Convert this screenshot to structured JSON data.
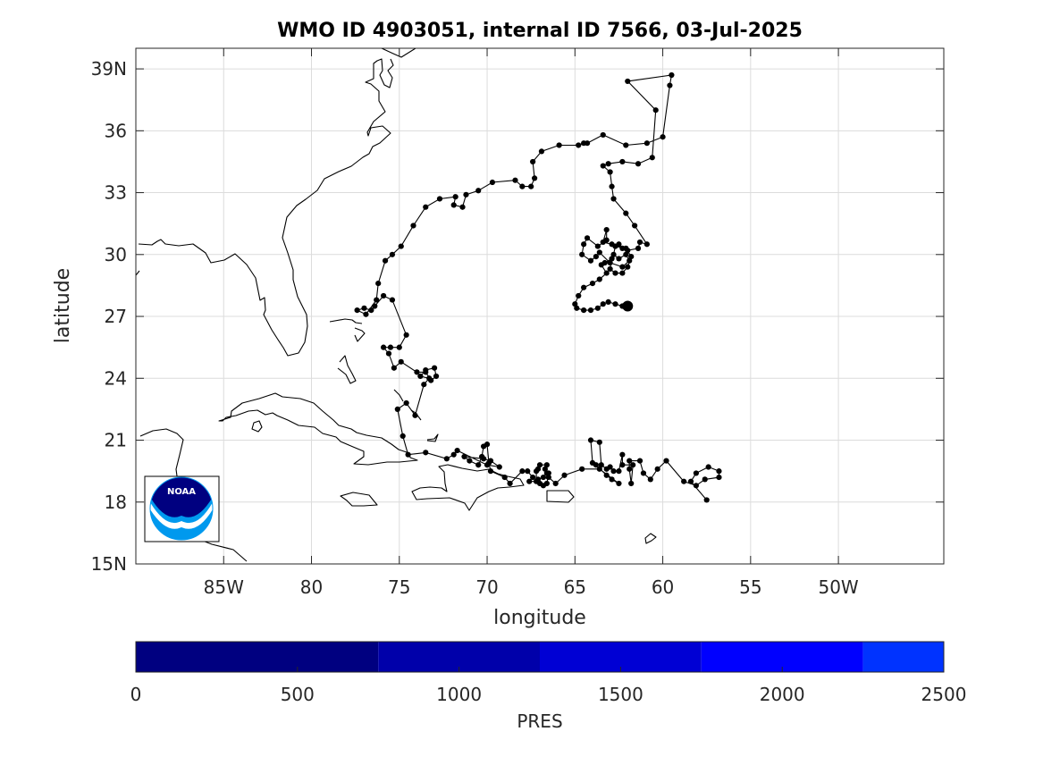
{
  "chart_data": {
    "type": "map-track",
    "title": "WMO ID 4903051, internal ID 7566, 03-Jul-2025",
    "xlabel": "longitude",
    "ylabel": "latitude",
    "xlim": [
      -90,
      -44
    ],
    "ylim": [
      15,
      40
    ],
    "x_ticks": [
      {
        "value": -85,
        "label": "85W"
      },
      {
        "value": -80,
        "label": "80"
      },
      {
        "value": -75,
        "label": "75"
      },
      {
        "value": -70,
        "label": "70"
      },
      {
        "value": -65,
        "label": "65"
      },
      {
        "value": -60,
        "label": "60"
      },
      {
        "value": -55,
        "label": "55"
      },
      {
        "value": -50,
        "label": "50W"
      }
    ],
    "y_ticks": [
      {
        "value": 15,
        "label": "15N"
      },
      {
        "value": 18,
        "label": "18"
      },
      {
        "value": 21,
        "label": "21"
      },
      {
        "value": 24,
        "label": "24"
      },
      {
        "value": 27,
        "label": "27"
      },
      {
        "value": 30,
        "label": "30"
      },
      {
        "value": 33,
        "label": "33"
      },
      {
        "value": 36,
        "label": "36"
      },
      {
        "value": 39,
        "label": "39N"
      }
    ],
    "grid": true,
    "track_color": "#000000",
    "last_position": [
      -62.0,
      27.5
    ],
    "track": [
      [
        -57.5,
        18.1
      ],
      [
        -58.4,
        19.0
      ],
      [
        -58.1,
        19.4
      ],
      [
        -57.4,
        19.7
      ],
      [
        -56.8,
        19.5
      ],
      [
        -56.8,
        19.2
      ],
      [
        -57.6,
        19.1
      ],
      [
        -58.1,
        18.8
      ],
      [
        -58.8,
        19.0
      ],
      [
        -59.8,
        20.0
      ],
      [
        -60.3,
        19.6
      ],
      [
        -60.7,
        19.1
      ],
      [
        -61.1,
        19.4
      ],
      [
        -61.3,
        20.0
      ],
      [
        -61.9,
        20.0
      ],
      [
        -61.9,
        19.6
      ],
      [
        -61.8,
        18.9
      ],
      [
        -61.7,
        19.8
      ],
      [
        -62.3,
        19.8
      ],
      [
        -62.3,
        20.3
      ],
      [
        -62.5,
        19.5
      ],
      [
        -62.8,
        19.5
      ],
      [
        -63.0,
        19.7
      ],
      [
        -63.2,
        19.6
      ],
      [
        -63.5,
        19.8
      ],
      [
        -63.6,
        20.9
      ],
      [
        -64.1,
        21.0
      ],
      [
        -64.0,
        19.9
      ],
      [
        -63.8,
        19.8
      ],
      [
        -63.2,
        19.3
      ],
      [
        -62.9,
        19.1
      ],
      [
        -62.5,
        18.9
      ],
      [
        -63.6,
        19.6
      ],
      [
        -64.6,
        19.6
      ],
      [
        -65.6,
        19.3
      ],
      [
        -66.1,
        18.9
      ],
      [
        -66.5,
        19.2
      ],
      [
        -66.5,
        19.4
      ],
      [
        -66.6,
        18.9
      ],
      [
        -66.8,
        18.8
      ],
      [
        -67.0,
        18.9
      ],
      [
        -67.1,
        19.1
      ],
      [
        -66.8,
        19.2
      ],
      [
        -66.6,
        19.4
      ],
      [
        -66.7,
        19.6
      ],
      [
        -66.6,
        19.8
      ],
      [
        -67.0,
        19.8
      ],
      [
        -67.1,
        19.6
      ],
      [
        -67.2,
        19.5
      ],
      [
        -67.2,
        19.0
      ],
      [
        -67.6,
        19.0
      ],
      [
        -67.4,
        19.2
      ],
      [
        -67.7,
        19.5
      ],
      [
        -68.0,
        19.5
      ],
      [
        -68.7,
        18.9
      ],
      [
        -69.0,
        19.2
      ],
      [
        -69.8,
        19.5
      ],
      [
        -69.9,
        19.9
      ],
      [
        -70.0,
        20.8
      ],
      [
        -70.2,
        20.7
      ],
      [
        -70.3,
        20.2
      ],
      [
        -70.5,
        19.8
      ],
      [
        -71.0,
        20.0
      ],
      [
        -71.3,
        20.2
      ],
      [
        -70.2,
        20.1
      ],
      [
        -69.8,
        20.0
      ],
      [
        -69.3,
        19.7
      ],
      [
        -70.0,
        19.8
      ],
      [
        -71.7,
        20.5
      ],
      [
        -71.9,
        20.3
      ],
      [
        -72.3,
        20.1
      ],
      [
        -73.5,
        20.4
      ],
      [
        -74.5,
        20.3
      ],
      [
        -74.8,
        21.2
      ],
      [
        -75.1,
        22.5
      ],
      [
        -74.6,
        22.8
      ],
      [
        -74.1,
        22.2
      ],
      [
        -73.6,
        23.7
      ],
      [
        -73.3,
        24.0
      ],
      [
        -73.8,
        24.1
      ],
      [
        -73.5,
        24.4
      ],
      [
        -73.0,
        24.5
      ],
      [
        -72.9,
        24.1
      ],
      [
        -73.2,
        23.9
      ],
      [
        -73.5,
        24.3
      ],
      [
        -74.0,
        24.3
      ],
      [
        -74.9,
        24.8
      ],
      [
        -75.3,
        24.5
      ],
      [
        -75.6,
        25.2
      ],
      [
        -75.9,
        25.5
      ],
      [
        -75.5,
        25.5
      ],
      [
        -75.0,
        25.5
      ],
      [
        -74.6,
        26.1
      ],
      [
        -75.4,
        27.8
      ],
      [
        -75.9,
        28.0
      ],
      [
        -76.4,
        27.5
      ],
      [
        -76.6,
        27.3
      ],
      [
        -77.0,
        27.4
      ],
      [
        -77.4,
        27.3
      ],
      [
        -76.9,
        27.1
      ],
      [
        -76.3,
        27.8
      ],
      [
        -76.2,
        28.6
      ],
      [
        -75.8,
        29.7
      ],
      [
        -75.4,
        30.0
      ],
      [
        -74.9,
        30.4
      ],
      [
        -74.2,
        31.4
      ],
      [
        -73.5,
        32.3
      ],
      [
        -72.7,
        32.7
      ],
      [
        -71.8,
        32.8
      ],
      [
        -71.9,
        32.4
      ],
      [
        -71.4,
        32.3
      ],
      [
        -71.2,
        32.9
      ],
      [
        -70.5,
        33.1
      ],
      [
        -69.7,
        33.5
      ],
      [
        -68.4,
        33.6
      ],
      [
        -68.0,
        33.3
      ],
      [
        -67.5,
        33.3
      ],
      [
        -67.3,
        33.7
      ],
      [
        -67.4,
        34.5
      ],
      [
        -66.9,
        35.0
      ],
      [
        -65.9,
        35.3
      ],
      [
        -64.8,
        35.3
      ],
      [
        -64.5,
        35.4
      ],
      [
        -64.3,
        35.4
      ],
      [
        -63.4,
        35.8
      ],
      [
        -62.1,
        35.3
      ],
      [
        -60.9,
        35.4
      ],
      [
        -60.0,
        35.7
      ],
      [
        -59.6,
        38.2
      ],
      [
        -59.5,
        38.7
      ],
      [
        -62.0,
        38.4
      ],
      [
        -60.4,
        37.0
      ],
      [
        -60.6,
        34.7
      ],
      [
        -61.4,
        34.4
      ],
      [
        -62.3,
        34.5
      ],
      [
        -63.1,
        34.4
      ],
      [
        -63.4,
        34.3
      ],
      [
        -63.0,
        34.0
      ],
      [
        -62.9,
        33.3
      ],
      [
        -62.8,
        32.7
      ],
      [
        -62.1,
        32.0
      ],
      [
        -61.6,
        31.4
      ],
      [
        -60.9,
        30.5
      ],
      [
        -61.3,
        30.6
      ],
      [
        -61.4,
        30.3
      ],
      [
        -62.0,
        30.2
      ],
      [
        -62.3,
        30.3
      ],
      [
        -62.5,
        30.5
      ],
      [
        -62.9,
        30.5
      ],
      [
        -63.4,
        30.6
      ],
      [
        -63.2,
        31.2
      ],
      [
        -63.2,
        30.7
      ],
      [
        -63.7,
        30.4
      ],
      [
        -64.3,
        30.8
      ],
      [
        -64.5,
        30.5
      ],
      [
        -64.6,
        30.0
      ],
      [
        -64.1,
        29.7
      ],
      [
        -63.8,
        29.9
      ],
      [
        -63.6,
        30.1
      ],
      [
        -63.0,
        29.6
      ],
      [
        -62.3,
        29.4
      ],
      [
        -61.9,
        29.7
      ],
      [
        -62.1,
        30.0
      ],
      [
        -62.5,
        29.8
      ],
      [
        -62.8,
        30.0
      ],
      [
        -62.7,
        30.4
      ],
      [
        -62.1,
        30.3
      ],
      [
        -61.8,
        29.9
      ],
      [
        -62.0,
        29.4
      ],
      [
        -62.3,
        29.1
      ],
      [
        -62.7,
        29.1
      ],
      [
        -63.0,
        29.3
      ],
      [
        -62.9,
        29.8
      ],
      [
        -63.3,
        29.6
      ],
      [
        -63.5,
        29.5
      ],
      [
        -63.2,
        29.1
      ],
      [
        -63.6,
        28.8
      ],
      [
        -64.0,
        28.6
      ],
      [
        -64.5,
        28.4
      ],
      [
        -64.8,
        28.0
      ],
      [
        -65.0,
        27.6
      ],
      [
        -64.9,
        27.4
      ],
      [
        -64.5,
        27.3
      ],
      [
        -64.1,
        27.3
      ],
      [
        -63.7,
        27.4
      ],
      [
        -63.4,
        27.6
      ],
      [
        -63.1,
        27.7
      ],
      [
        -62.7,
        27.6
      ],
      [
        -62.3,
        27.5
      ],
      [
        -62.0,
        27.5
      ]
    ]
  },
  "colorbar": {
    "label": "PRES",
    "range": [
      0,
      2500
    ],
    "ticks": [
      {
        "value": 0,
        "label": "0"
      },
      {
        "value": 500,
        "label": "500"
      },
      {
        "value": 1000,
        "label": "1000"
      },
      {
        "value": 1500,
        "label": "1500"
      },
      {
        "value": 2000,
        "label": "2000"
      },
      {
        "value": 2500,
        "label": "2500"
      }
    ],
    "bands": [
      {
        "from": 0,
        "to": 750,
        "color": "#000080"
      },
      {
        "from": 750,
        "to": 1250,
        "color": "#0000AA"
      },
      {
        "from": 1250,
        "to": 1750,
        "color": "#0000D4"
      },
      {
        "from": 1750,
        "to": 2250,
        "color": "#0000FF"
      },
      {
        "from": 2250,
        "to": 2500,
        "color": "#0033FF"
      }
    ]
  },
  "logo": {
    "text": "NOAA",
    "colors": {
      "top": "#000080",
      "bottom": "#0099EE",
      "wave": "#ffffff"
    }
  }
}
